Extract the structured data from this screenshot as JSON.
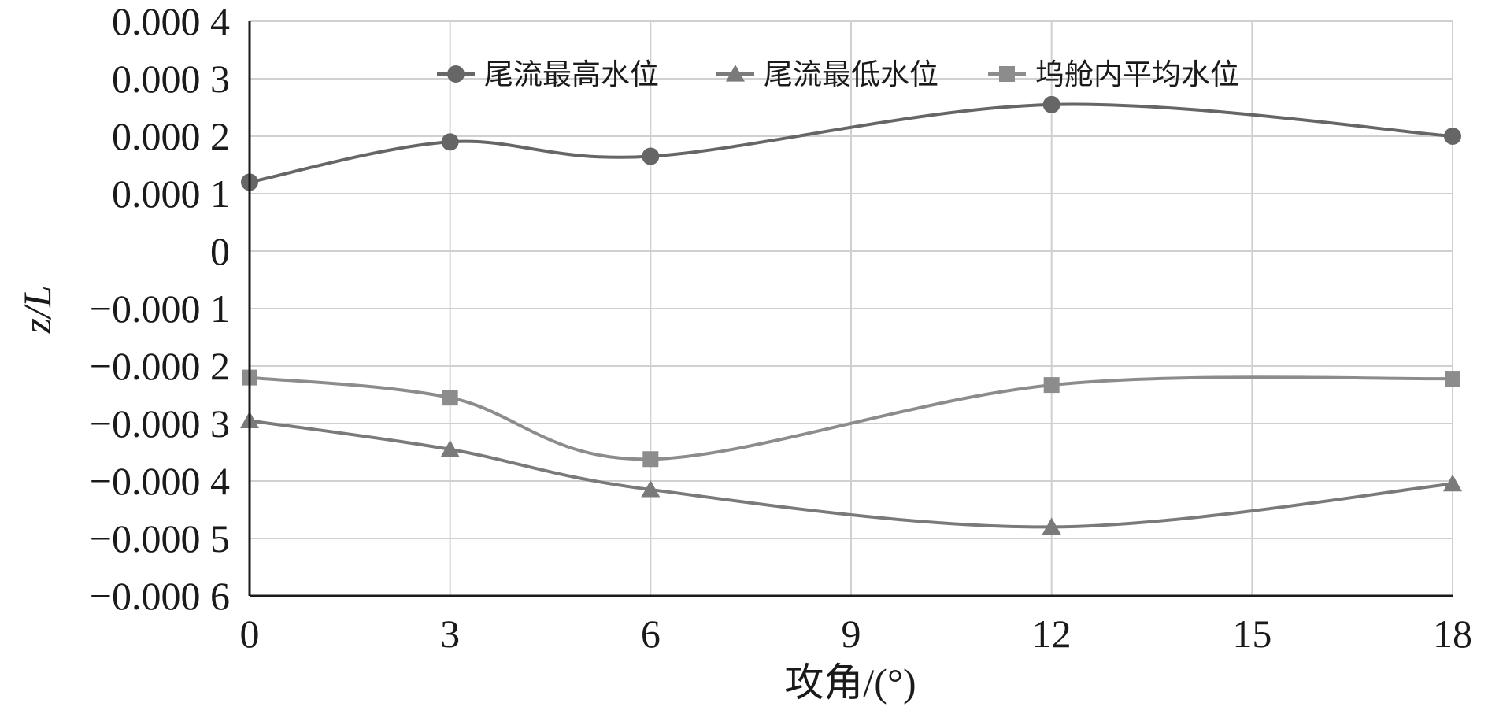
{
  "chart_data": {
    "type": "line",
    "title": "",
    "xlabel": "攻角/(°)",
    "ylabel": "z/L",
    "xlim": [
      0,
      18
    ],
    "ylim": [
      -0.0006,
      0.0004
    ],
    "x_ticks": [
      0,
      3,
      6,
      9,
      12,
      15,
      18
    ],
    "x_tick_labels": [
      "0",
      "3",
      "6",
      "9",
      "12",
      "15",
      "18"
    ],
    "y_ticks": [
      0.0004,
      0.0003,
      0.0002,
      0.0001,
      0,
      -0.0001,
      -0.0002,
      -0.0003,
      -0.0004,
      -0.0005,
      -0.0006
    ],
    "y_tick_labels": [
      "0.000 4",
      "0.000 3",
      "0.000 2",
      "0.000 1",
      "0",
      "−0.000 1",
      "−0.000 2",
      "−0.000 3",
      "−0.000 4",
      "−0.000 5",
      "−0.000 6"
    ],
    "grid": true,
    "legend_position": "top-center",
    "x": [
      0,
      3,
      6,
      12,
      18
    ],
    "series": [
      {
        "name": "尾流最高水位",
        "marker": "circle",
        "color": "#666666",
        "values": [
          0.00012,
          0.00019,
          0.000165,
          0.000255,
          0.0002
        ]
      },
      {
        "name": "尾流最低水位",
        "marker": "triangle",
        "color": "#7a7a7a",
        "values": [
          -0.000295,
          -0.000345,
          -0.000415,
          -0.00048,
          -0.000405
        ]
      },
      {
        "name": "坞舱内平均水位",
        "marker": "square",
        "color": "#8c8c8c",
        "values": [
          -0.00022,
          -0.000255,
          -0.000362,
          -0.000233,
          -0.000222
        ]
      }
    ]
  }
}
